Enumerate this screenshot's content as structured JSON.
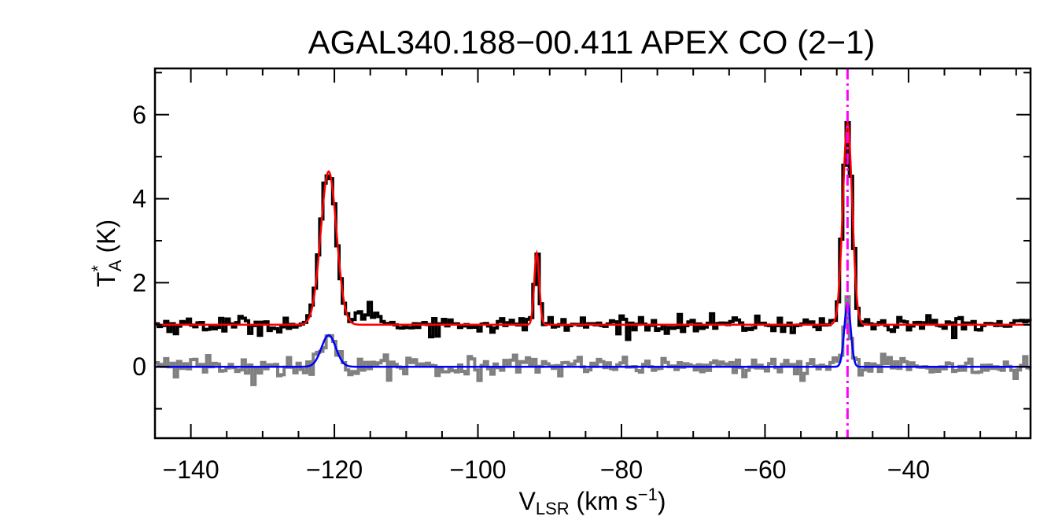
{
  "chart_data": {
    "type": "line",
    "title": "AGAL340.188−00.411  APEX CO (2−1)",
    "xlabel": {
      "main": "V",
      "sub": "LSR",
      "rest": " (km s",
      "sup": "−1",
      "end": ")"
    },
    "ylabel": {
      "main": "T",
      "sup": "*",
      "sub": "A",
      "rest": " (K)"
    },
    "xlim": [
      -145,
      -23
    ],
    "ylim": [
      -1.7,
      7.1
    ],
    "xticks": [
      -140,
      -120,
      -100,
      -80,
      -60,
      -40
    ],
    "xtick_labels": [
      "−140",
      "−120",
      "−100",
      "−80",
      "−60",
      "−40"
    ],
    "yticks": [
      0,
      2,
      4,
      6
    ],
    "ytick_labels": [
      "0",
      "2",
      "4",
      "6"
    ],
    "grid": false,
    "series": [
      {
        "role": "observed spectrum (offset)",
        "style": "histogram",
        "color": "#000000",
        "offset": 1.0,
        "noise": 0.1,
        "components": [
          {
            "amp": 3.7,
            "center": -120.8,
            "sigma": 1.1
          },
          {
            "amp": 0.35,
            "center": -115.0,
            "sigma": 1.2
          },
          {
            "amp": 1.8,
            "center": -91.8,
            "sigma": 0.35
          },
          {
            "amp": 4.8,
            "center": -48.5,
            "sigma": 0.65
          }
        ]
      },
      {
        "role": "fit to spectrum",
        "style": "line",
        "color": "#ff0000",
        "offset": 1.0,
        "components": [
          {
            "amp": 3.65,
            "center": -120.8,
            "sigma": 1.1
          },
          {
            "amp": 1.7,
            "center": -91.8,
            "sigma": 0.35
          },
          {
            "amp": 4.8,
            "center": -48.5,
            "sigma": 0.65
          }
        ]
      },
      {
        "role": "second spectrum",
        "style": "histogram",
        "color": "#808080",
        "offset": 0.0,
        "noise": 0.12,
        "components": [
          {
            "amp": 0.75,
            "center": -120.8,
            "sigma": 1.0
          },
          {
            "amp": 1.5,
            "center": -48.5,
            "sigma": 0.45
          }
        ]
      },
      {
        "role": "fit to second spectrum",
        "style": "line",
        "color": "#0000ff",
        "offset": 0.0,
        "components": [
          {
            "amp": 0.75,
            "center": -120.8,
            "sigma": 1.0
          },
          {
            "amp": 1.5,
            "center": -48.5,
            "sigma": 0.45
          }
        ]
      }
    ],
    "marker_line": {
      "x": -48.5,
      "color": "#ff00ff",
      "style": "dash-dot"
    }
  }
}
